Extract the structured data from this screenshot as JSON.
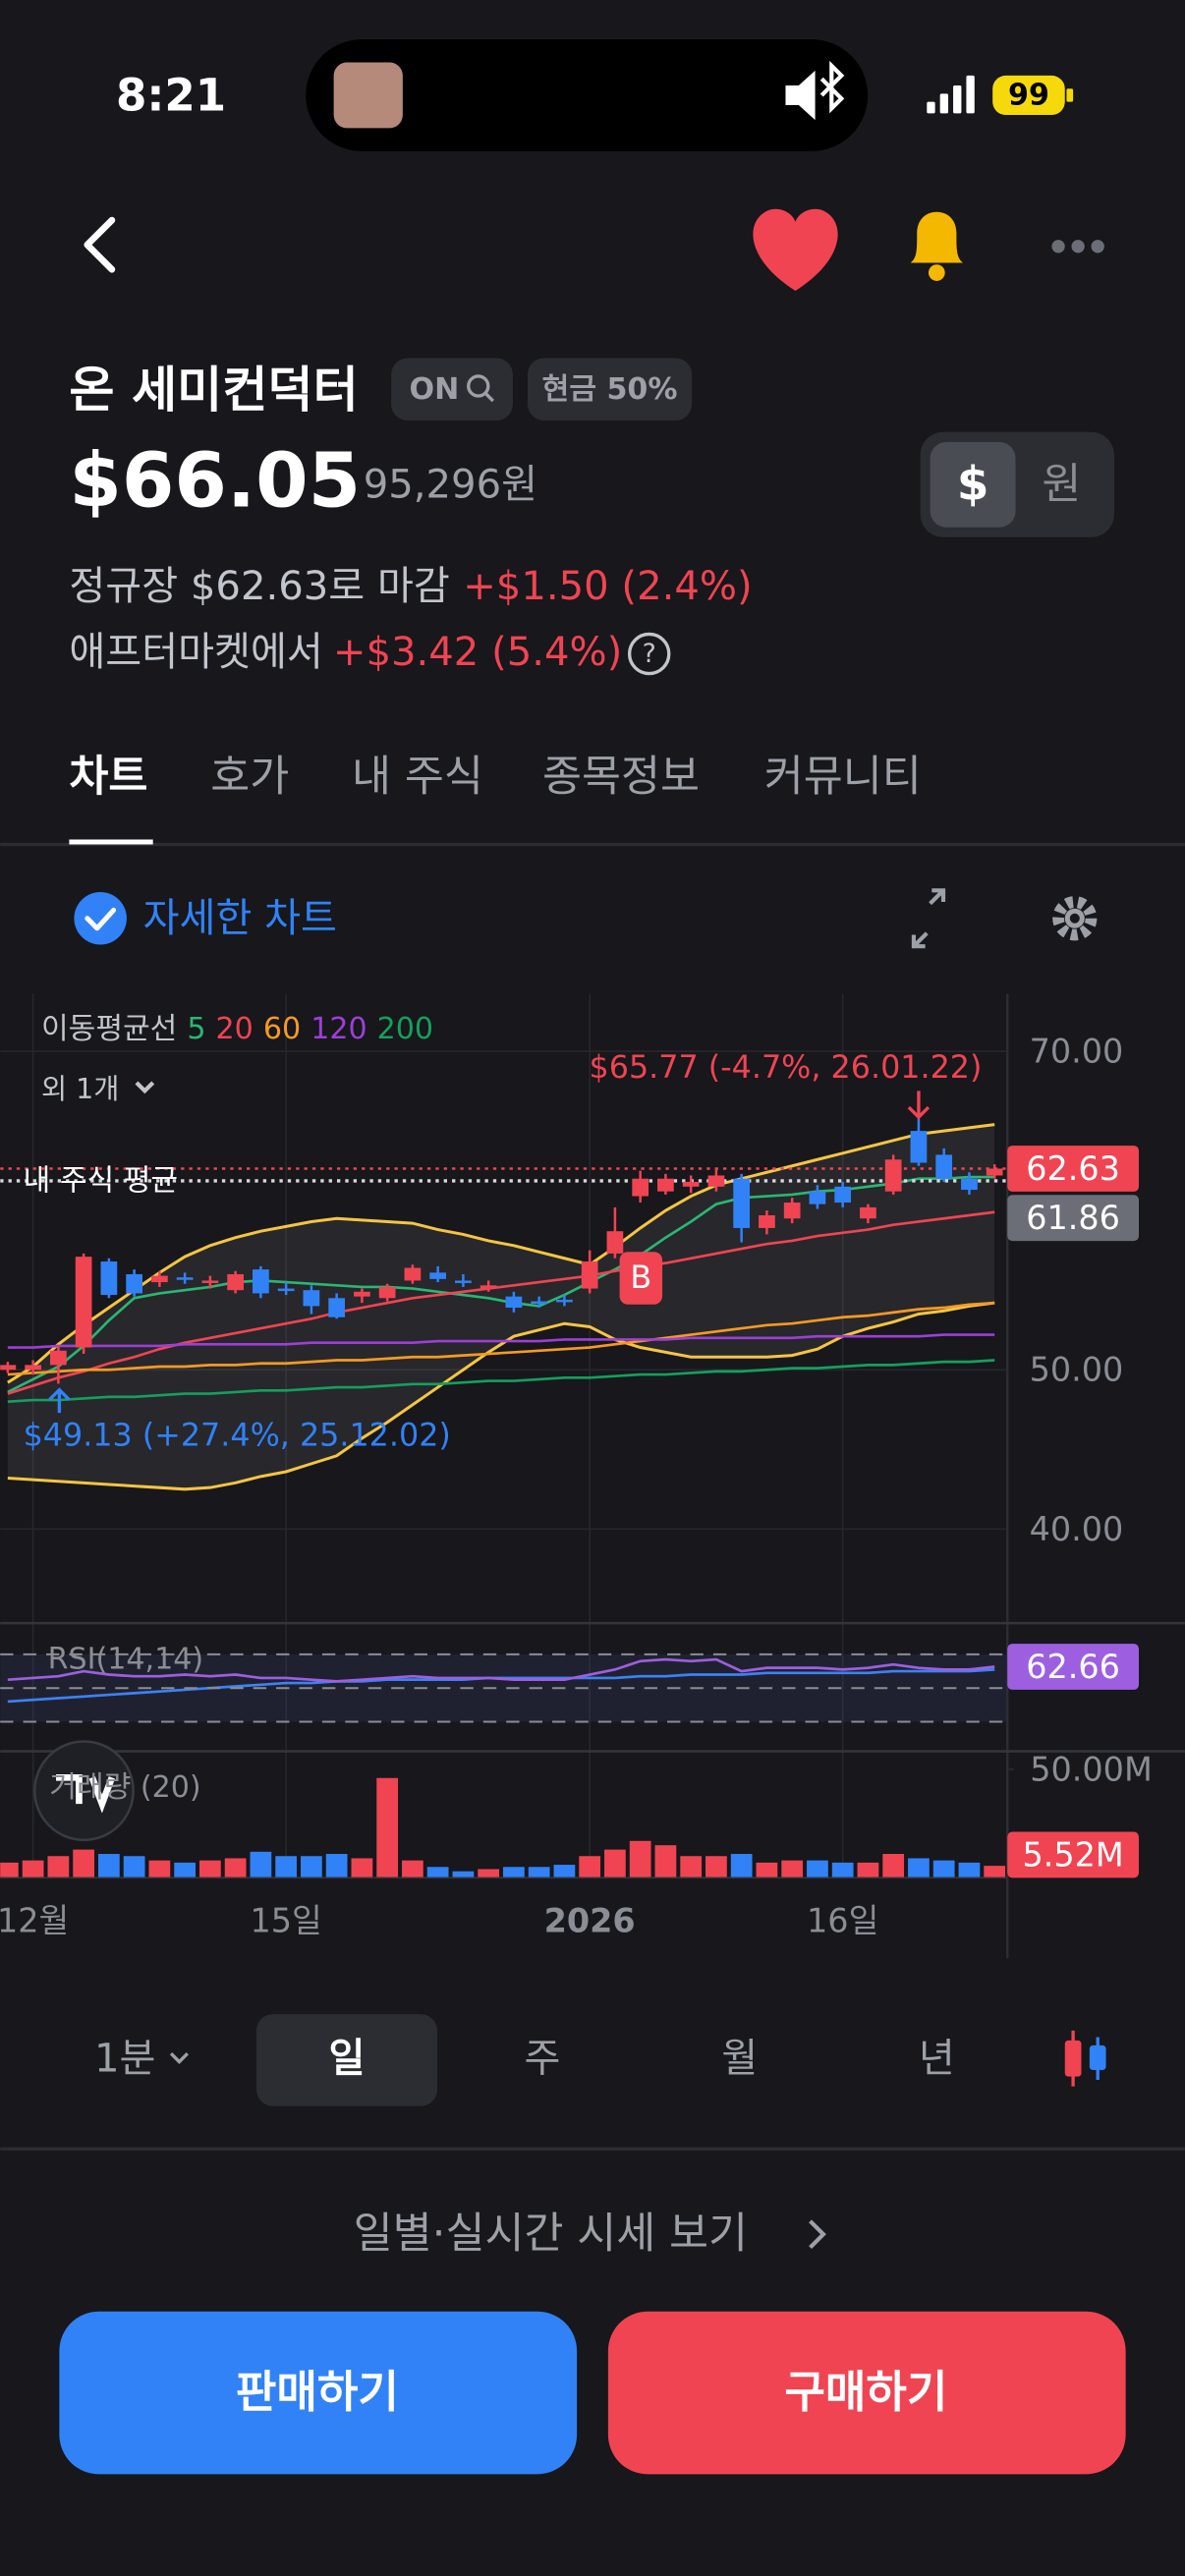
{
  "status_bar": {
    "time": "8:21",
    "battery": "99"
  },
  "stock": {
    "name": "온 세미컨덕터",
    "ticker_chip": "ON",
    "cash_chip": "현금 50%",
    "price": "$66.05",
    "price_krw": "95,296원",
    "currency_options": [
      "$",
      "원"
    ],
    "regular_close": "정규장 $62.63로 마감",
    "regular_change": "+$1.50 (2.4%)",
    "after_market": "애프터마켓에서",
    "after_change": "+$3.42 (5.4%)",
    "help": "?"
  },
  "tabs": [
    "차트",
    "호가",
    "내 주식",
    "종목정보",
    "커뮤니티"
  ],
  "chart_toggle": "자세한 차트",
  "chart_data": {
    "type": "candlestick",
    "categories": [
      null,
      "12월",
      null,
      null,
      null,
      null,
      null,
      null,
      null,
      null,
      null,
      "15일",
      null,
      null,
      null,
      null,
      null,
      null,
      null,
      null,
      null,
      null,
      null,
      "2026",
      null,
      null,
      null,
      null,
      null,
      null,
      null,
      null,
      null,
      "16일",
      null,
      null,
      null,
      null,
      null,
      null
    ],
    "candles": {
      "up_color": "#f04452",
      "down_color": "#3182f6",
      "open": [
        50.0,
        50.0,
        50.3,
        51.4,
        56.8,
        56.0,
        55.5,
        55.8,
        55.5,
        55.0,
        56.3,
        55.1,
        55.0,
        54.5,
        54.6,
        54.5,
        55.6,
        56.1,
        55.6,
        55.1,
        54.6,
        54.3,
        54.4,
        55.1,
        57.3,
        60.9,
        61.2,
        61.5,
        61.5,
        62.0,
        58.9,
        59.5,
        61.2,
        61.5,
        59.5,
        61.2,
        65.0,
        63.5,
        62.0,
        62.2
      ],
      "high": [
        50.5,
        50.6,
        51.5,
        57.3,
        57.0,
        56.3,
        56.2,
        56.1,
        55.9,
        56.2,
        56.5,
        55.5,
        55.3,
        54.8,
        55.1,
        55.4,
        56.6,
        56.5,
        56.0,
        55.6,
        54.9,
        54.6,
        54.7,
        57.5,
        60.2,
        62.5,
        62.3,
        62.2,
        62.6,
        62.3,
        60.0,
        60.8,
        61.6,
        61.8,
        60.4,
        63.5,
        65.77,
        63.9,
        62.4,
        62.9
      ],
      "low": [
        49.8,
        49.7,
        49.13,
        51.0,
        54.5,
        54.6,
        55.2,
        55.4,
        55.1,
        54.8,
        54.5,
        54.7,
        53.5,
        53.2,
        54.2,
        54.3,
        55.4,
        55.5,
        55.2,
        54.9,
        53.6,
        53.9,
        54.0,
        54.8,
        57.0,
        60.5,
        61.0,
        61.1,
        61.2,
        58.0,
        58.5,
        59.2,
        60.1,
        60.2,
        59.2,
        61.0,
        62.8,
        61.8,
        61.0,
        62.0
      ],
      "close": [
        50.3,
        50.3,
        51.2,
        57.1,
        54.7,
        54.8,
        55.9,
        55.7,
        55.6,
        56.0,
        54.8,
        55.0,
        54.0,
        53.3,
        54.9,
        55.2,
        56.4,
        55.7,
        55.5,
        55.3,
        53.9,
        54.2,
        54.3,
        56.8,
        58.7,
        62.0,
        62.0,
        61.8,
        62.2,
        58.9,
        59.7,
        60.5,
        60.4,
        60.5,
        60.2,
        63.2,
        63.0,
        62.0,
        61.3,
        62.63
      ]
    },
    "ma_title": "이동평균선",
    "ma_more": "외 1개",
    "lines": [
      {
        "name": "5",
        "color": "#2bb673",
        "values": [
          48.6,
          49.4,
          50.2,
          51.5,
          53.1,
          54.5,
          54.8,
          55.0,
          55.2,
          55.5,
          55.6,
          55.5,
          55.4,
          55.3,
          55.2,
          55.2,
          55.1,
          54.9,
          54.7,
          54.5,
          54.2,
          54.0,
          54.7,
          55.5,
          56.3,
          57.2,
          58.3,
          59.3,
          60.4,
          60.8,
          60.9,
          61.0,
          61.2,
          61.3,
          61.5,
          61.7,
          62.0,
          62.0,
          62.1,
          62.1
        ]
      },
      {
        "name": "20",
        "color": "#f04452",
        "values": [
          48.5,
          49.0,
          49.5,
          49.9,
          50.4,
          50.8,
          51.3,
          51.7,
          52.0,
          52.3,
          52.6,
          52.9,
          53.2,
          53.6,
          53.9,
          54.2,
          54.5,
          54.7,
          54.9,
          55.1,
          55.3,
          55.5,
          55.7,
          55.9,
          56.2,
          56.5,
          56.7,
          57.0,
          57.3,
          57.6,
          57.9,
          58.1,
          58.4,
          58.6,
          58.8,
          59.1,
          59.3,
          59.5,
          59.7,
          59.9
        ]
      },
      {
        "name": "60",
        "color": "#f59a23",
        "values": [
          49.7,
          49.8,
          49.9,
          50.0,
          50.0,
          50.1,
          50.2,
          50.2,
          50.3,
          50.3,
          50.4,
          50.4,
          50.5,
          50.6,
          50.6,
          50.7,
          50.8,
          50.8,
          50.9,
          51.0,
          51.1,
          51.2,
          51.3,
          51.4,
          51.6,
          51.8,
          52.0,
          52.2,
          52.4,
          52.6,
          52.8,
          52.9,
          53.1,
          53.3,
          53.4,
          53.6,
          53.8,
          53.9,
          54.1,
          54.2
        ]
      },
      {
        "name": "120",
        "color": "#9d3fd6",
        "values": [
          51.4,
          51.4,
          51.5,
          51.5,
          51.5,
          51.5,
          51.5,
          51.6,
          51.6,
          51.6,
          51.6,
          51.6,
          51.7,
          51.7,
          51.7,
          51.7,
          51.7,
          51.8,
          51.8,
          51.8,
          51.8,
          51.8,
          51.9,
          51.9,
          51.9,
          51.9,
          51.9,
          52.0,
          52.0,
          52.0,
          52.0,
          52.0,
          52.1,
          52.1,
          52.1,
          52.1,
          52.1,
          52.2,
          52.2,
          52.2
        ]
      },
      {
        "name": "200",
        "color": "#14a05c",
        "values": [
          48.0,
          48.1,
          48.1,
          48.2,
          48.3,
          48.3,
          48.4,
          48.5,
          48.5,
          48.6,
          48.7,
          48.7,
          48.8,
          48.9,
          48.9,
          49.0,
          49.1,
          49.1,
          49.2,
          49.3,
          49.3,
          49.4,
          49.5,
          49.5,
          49.6,
          49.7,
          49.7,
          49.8,
          49.9,
          49.9,
          50.0,
          50.1,
          50.1,
          50.2,
          50.3,
          50.3,
          50.4,
          50.5,
          50.5,
          50.6
        ]
      }
    ],
    "bands": {
      "color": "#f5c542",
      "upper": [
        49.2,
        50.2,
        51.6,
        52.8,
        53.9,
        55.0,
        56.1,
        57.1,
        57.8,
        58.3,
        58.7,
        59.0,
        59.3,
        59.5,
        59.4,
        59.3,
        59.2,
        58.8,
        58.5,
        58.1,
        57.8,
        57.4,
        57.0,
        56.6,
        57.7,
        58.9,
        60.0,
        60.9,
        61.6,
        62.0,
        62.4,
        62.8,
        63.2,
        63.6,
        64.0,
        64.4,
        64.8,
        65.0,
        65.2,
        65.4
      ],
      "lower": [
        43.2,
        43.1,
        43.0,
        42.9,
        42.8,
        42.7,
        42.6,
        42.5,
        42.6,
        42.9,
        43.3,
        43.6,
        44.1,
        44.6,
        45.7,
        46.7,
        47.8,
        48.9,
        50.0,
        51.1,
        52.1,
        52.5,
        52.9,
        52.7,
        51.9,
        51.4,
        51.1,
        50.8,
        50.8,
        50.8,
        50.8,
        50.9,
        51.3,
        52.1,
        52.6,
        53.0,
        53.5,
        53.7,
        54.0,
        54.2
      ]
    },
    "ylim": [
      34.4,
      73.6
    ],
    "yticks": [
      {
        "value": 40,
        "label": "40.00"
      },
      {
        "value": 50,
        "label": "50.00"
      },
      {
        "value": 70,
        "label": "70.00"
      }
    ],
    "grid": true,
    "avg_label": "내 주식 평균",
    "avg_price": 61.86,
    "annotations": [
      {
        "text": "$65.77 (-4.7%, 26.01.22)",
        "color": "#f04452"
      },
      {
        "text": "$49.13 (+27.4%, 25.12.02)",
        "color": "#3182f6"
      }
    ],
    "buy_marker": "B",
    "rsi": {
      "title": "RSI(14,14)",
      "ylim": [
        15.4,
        86.6
      ],
      "levels": [
        30,
        50,
        70
      ],
      "color": "#9d5fe0",
      "signal_color": "#3b82f6",
      "values": [
        55,
        56,
        57,
        60,
        58,
        57,
        57,
        58,
        57,
        58,
        56,
        56,
        55,
        54,
        55,
        56,
        57,
        56,
        56,
        56,
        55,
        55,
        55,
        58,
        61,
        66,
        67,
        66,
        67,
        60,
        62,
        62,
        62,
        61,
        62,
        64,
        62,
        61,
        61,
        62.66
      ],
      "signal": [
        42,
        43,
        44,
        45,
        46,
        47,
        48,
        49,
        50,
        51,
        52,
        53,
        53,
        54,
        54,
        55,
        55,
        55,
        55,
        56,
        56,
        56,
        56,
        56,
        56,
        57,
        57,
        58,
        58,
        58,
        59,
        59,
        59,
        59,
        59,
        60,
        60,
        60,
        60,
        61
      ]
    },
    "volume": {
      "title": "거래량 (20)",
      "ylim": [
        0,
        56.8
      ],
      "yticks": [
        {
          "value": 50,
          "label": "50.00M"
        }
      ],
      "values": [
        7,
        8,
        10,
        13,
        11,
        10,
        8,
        7,
        8,
        9,
        12,
        10,
        10,
        11,
        9,
        46,
        8,
        5,
        3,
        4,
        5,
        5,
        6,
        10,
        13,
        17,
        15,
        10,
        10,
        11,
        7,
        8,
        8,
        7,
        7,
        11,
        9,
        8,
        7,
        5.52
      ],
      "value_labels": [
        null,
        null,
        null,
        null,
        null,
        null,
        null,
        null,
        null,
        null,
        null,
        null,
        null,
        null,
        null,
        null,
        null,
        null,
        null,
        null,
        null,
        null,
        null,
        null,
        null,
        null,
        null,
        null,
        null,
        null,
        null,
        null,
        null,
        null,
        null,
        null,
        null,
        null,
        null,
        "5.52M"
      ]
    }
  },
  "periods": {
    "minute": "1분",
    "options": [
      "일",
      "주",
      "월",
      "년"
    ]
  },
  "quote_link": "일별·실시간 시세 보기",
  "actions": {
    "sell": "판매하기",
    "buy": "구매하기"
  }
}
